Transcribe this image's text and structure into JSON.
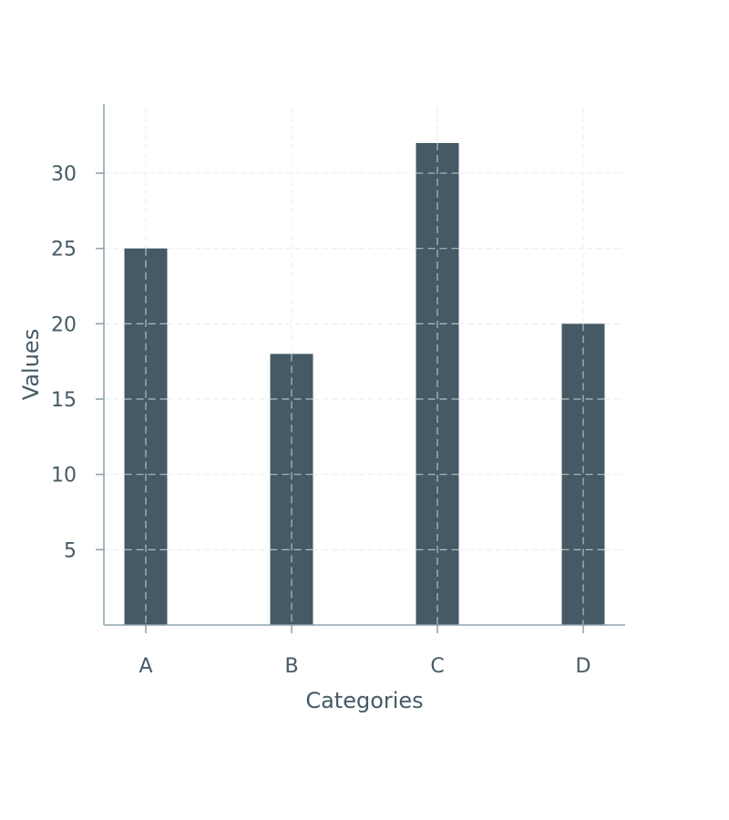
{
  "chart_data": {
    "type": "bar",
    "categories": [
      "A",
      "B",
      "C",
      "D"
    ],
    "values": [
      25,
      18,
      32,
      20
    ],
    "title": "",
    "xlabel": "Categories",
    "ylabel": "Values",
    "ylim": [
      0,
      34.6
    ],
    "yticks": [
      5,
      10,
      15,
      20,
      25,
      30
    ],
    "grid": true,
    "colors": {
      "bar": "#455a64",
      "axis": "#90a4ae",
      "text": "#455a64",
      "grid": "#eceff1",
      "bar_grid": "#b0bec5"
    }
  }
}
